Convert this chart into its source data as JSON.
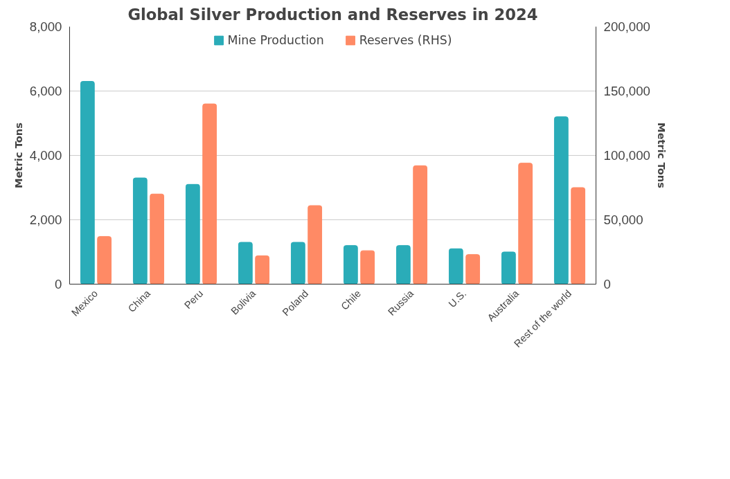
{
  "chart_data": {
    "type": "bar",
    "title": "Global Silver Production and Reserves in 2024",
    "categories": [
      "Mexico",
      "China",
      "Peru",
      "Bolivia",
      "Poland",
      "Chile",
      "Russia",
      "U.S.",
      "Australia",
      "Rest of the world"
    ],
    "series": [
      {
        "name": "Mine Production",
        "color": "#2aacb8",
        "values": [
          6300,
          3300,
          3100,
          1300,
          1300,
          1200,
          1200,
          1100,
          1000,
          5200
        ]
      },
      {
        "name": "Reserves (RHS)",
        "color": "#ff8a65",
        "axis": "y2",
        "values": [
          37000,
          70000,
          140000,
          22000,
          61000,
          26000,
          92000,
          23000,
          94000,
          75000
        ]
      }
    ],
    "ylabel": "Metric Tons",
    "y2label": "Metric Tons",
    "ylim": [
      0,
      8000
    ],
    "yticks": [
      {
        "value": 0,
        "label": "0"
      },
      {
        "value": 2000,
        "label": "2,000"
      },
      {
        "value": 4000,
        "label": "4,000"
      },
      {
        "value": 6000,
        "label": "6,000"
      },
      {
        "value": 8000,
        "label": "8,000"
      }
    ],
    "y2lim": [
      0,
      200000
    ],
    "y2ticks": [
      {
        "value": 0,
        "label": "0"
      },
      {
        "value": 50000,
        "label": "50,000"
      },
      {
        "value": 100000,
        "label": "100,000"
      },
      {
        "value": 150000,
        "label": "150,000"
      },
      {
        "value": 200000,
        "label": "200,000"
      }
    ],
    "grid": "y",
    "legend": "top"
  }
}
